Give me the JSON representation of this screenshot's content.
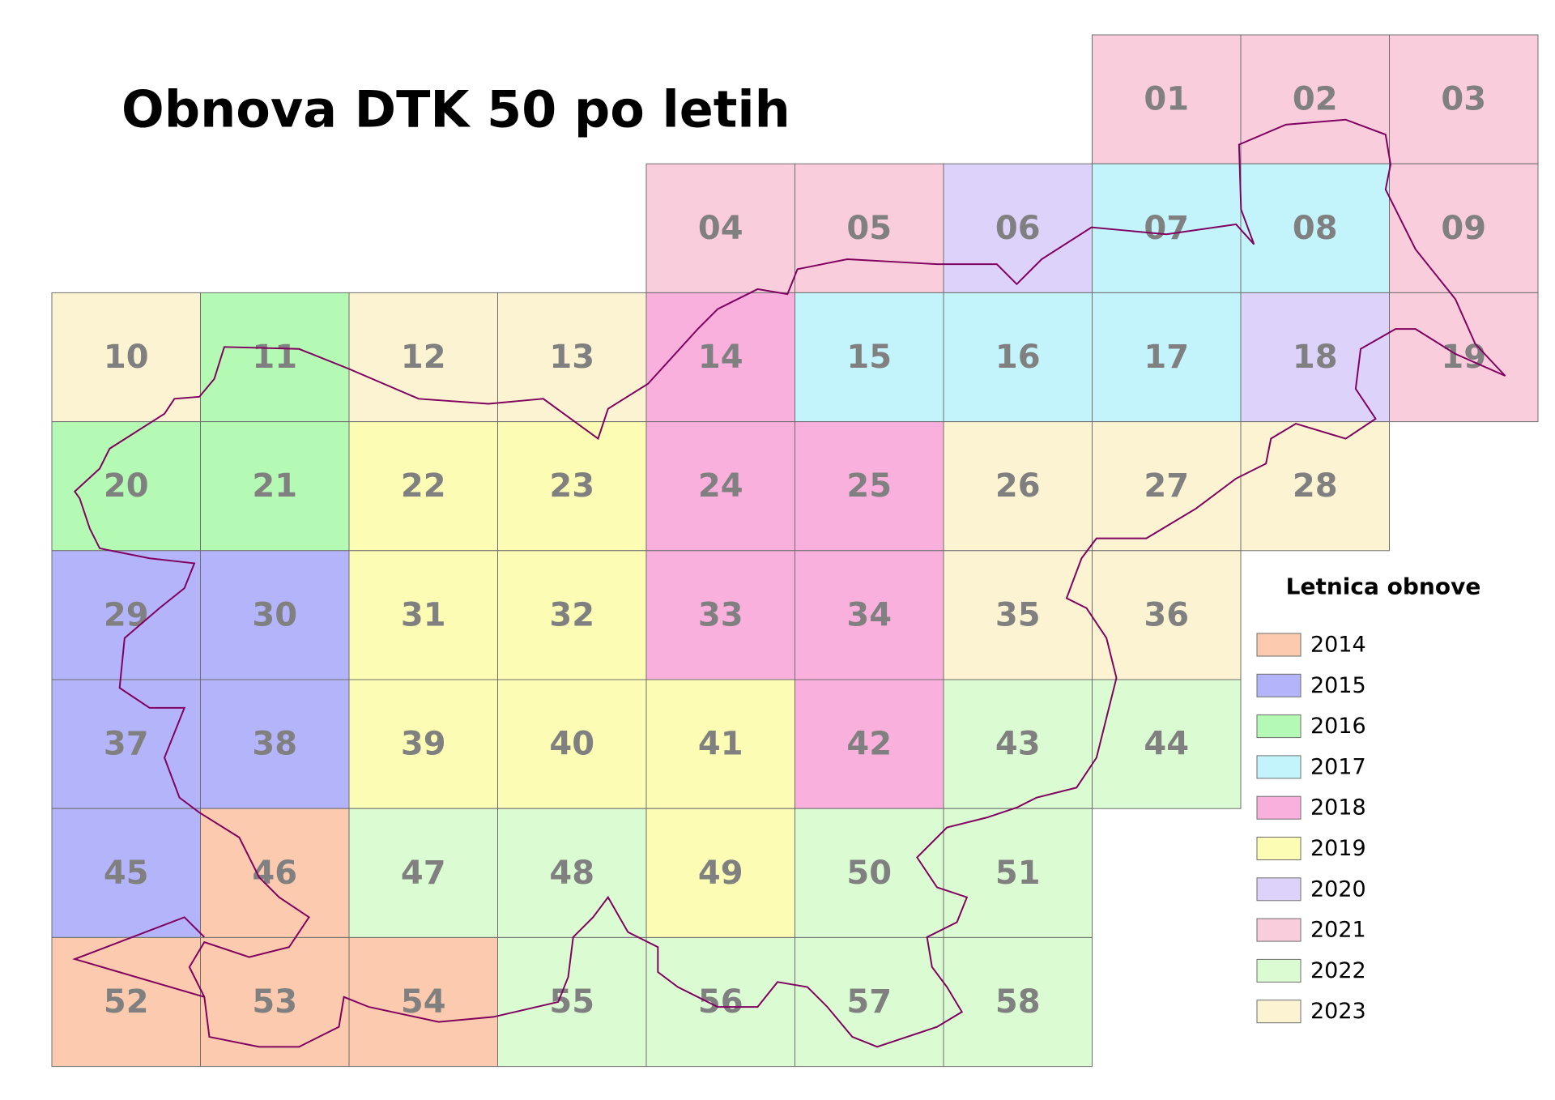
{
  "title": "Obnova DTK 50 po letih",
  "legend": {
    "title": "Letnica obnove",
    "items": [
      {
        "year": 2014,
        "color": "#fccbaf"
      },
      {
        "year": 2015,
        "color": "#b4b4fa"
      },
      {
        "year": 2016,
        "color": "#b4fab4"
      },
      {
        "year": 2017,
        "color": "#c3f4fc"
      },
      {
        "year": 2018,
        "color": "#f9b0dd"
      },
      {
        "year": 2019,
        "color": "#fcfcb4"
      },
      {
        "year": 2020,
        "color": "#dcd2fa"
      },
      {
        "year": 2021,
        "color": "#f9cddc"
      },
      {
        "year": 2022,
        "color": "#dbfcd2"
      },
      {
        "year": 2023,
        "color": "#fcf3d2"
      }
    ]
  },
  "rows": [
    [
      {
        "label": "01",
        "year": 2021
      },
      {
        "label": "02",
        "year": 2021
      },
      {
        "label": "03",
        "year": 2021
      }
    ],
    [
      {
        "label": "04",
        "year": 2021
      },
      {
        "label": "05",
        "year": 2021
      },
      {
        "label": "06",
        "year": 2020
      },
      {
        "label": "07",
        "year": 2017
      },
      {
        "label": "08",
        "year": 2017
      },
      {
        "label": "09",
        "year": 2021
      }
    ],
    [
      {
        "label": "10",
        "year": 2023
      },
      {
        "label": "11",
        "year": 2016
      },
      {
        "label": "12",
        "year": 2023
      },
      {
        "label": "13",
        "year": 2023
      },
      {
        "label": "14",
        "year": 2018
      },
      {
        "label": "15",
        "year": 2017
      },
      {
        "label": "16",
        "year": 2017
      },
      {
        "label": "17",
        "year": 2017
      },
      {
        "label": "18",
        "year": 2020
      },
      {
        "label": "19",
        "year": 2021
      }
    ],
    [
      {
        "label": "20",
        "year": 2016
      },
      {
        "label": "21",
        "year": 2016
      },
      {
        "label": "22",
        "year": 2019
      },
      {
        "label": "23",
        "year": 2019
      },
      {
        "label": "24",
        "year": 2018
      },
      {
        "label": "25",
        "year": 2018
      },
      {
        "label": "26",
        "year": 2023
      },
      {
        "label": "27",
        "year": 2023
      },
      {
        "label": "28",
        "year": 2023
      }
    ],
    [
      {
        "label": "29",
        "year": 2015
      },
      {
        "label": "30",
        "year": 2015
      },
      {
        "label": "31",
        "year": 2019
      },
      {
        "label": "32",
        "year": 2019
      },
      {
        "label": "33",
        "year": 2018
      },
      {
        "label": "34",
        "year": 2018
      },
      {
        "label": "35",
        "year": 2023
      },
      {
        "label": "36",
        "year": 2023
      }
    ],
    [
      {
        "label": "37",
        "year": 2015
      },
      {
        "label": "38",
        "year": 2015
      },
      {
        "label": "39",
        "year": 2019
      },
      {
        "label": "40",
        "year": 2019
      },
      {
        "label": "41",
        "year": 2019
      },
      {
        "label": "42",
        "year": 2018
      },
      {
        "label": "43",
        "year": 2022
      },
      {
        "label": "44",
        "year": 2022
      }
    ],
    [
      {
        "label": "45",
        "year": 2015
      },
      {
        "label": "46",
        "year": 2014
      },
      {
        "label": "47",
        "year": 2022
      },
      {
        "label": "48",
        "year": 2022
      },
      {
        "label": "49",
        "year": 2019
      },
      {
        "label": "50",
        "year": 2022
      },
      {
        "label": "51",
        "year": 2022
      }
    ],
    [
      {
        "label": "52",
        "year": 2014
      },
      {
        "label": "53",
        "year": 2014
      },
      {
        "label": "54",
        "year": 2014
      },
      {
        "label": "55",
        "year": 2022
      },
      {
        "label": "56",
        "year": 2022
      },
      {
        "label": "57",
        "year": 2022
      },
      {
        "label": "58",
        "year": 2022
      }
    ]
  ]
}
